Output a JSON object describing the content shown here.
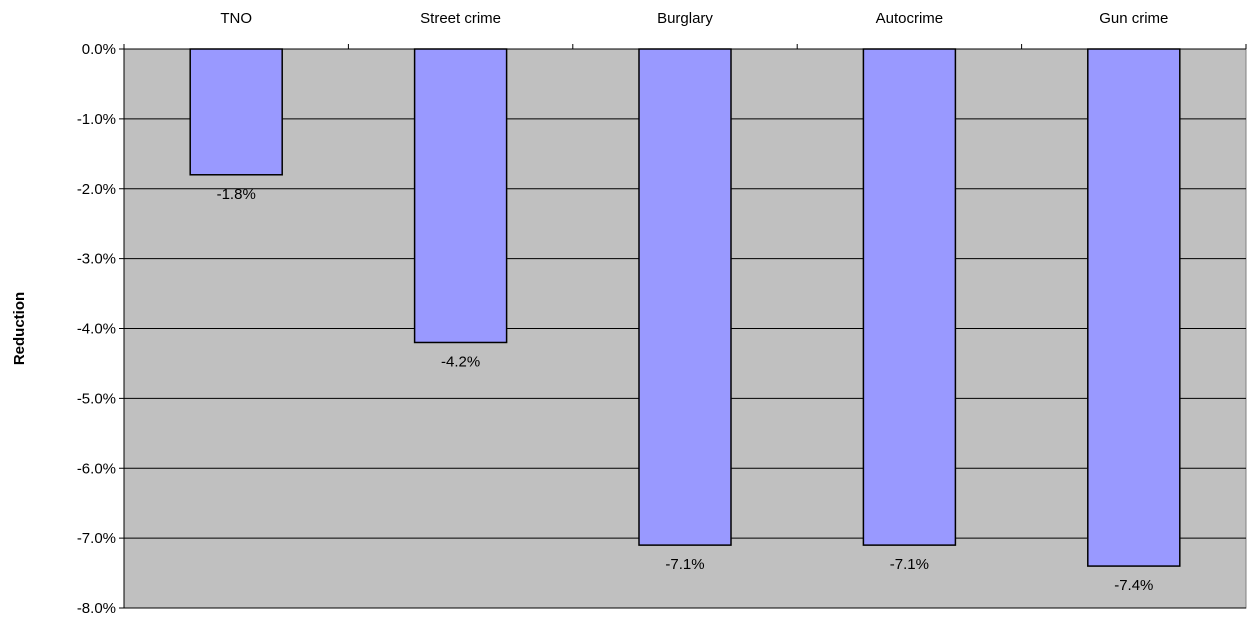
{
  "chart_data": {
    "type": "bar",
    "categories": [
      "TNO",
      "Street crime",
      "Burglary",
      "Autocrime",
      "Gun crime"
    ],
    "values": [
      -1.8,
      -4.2,
      -7.1,
      -7.1,
      -7.4
    ],
    "data_labels": [
      "-1.8%",
      "-4.2%",
      "-7.1%",
      "-7.1%",
      "-7.4%"
    ],
    "title": "",
    "xlabel": "",
    "ylabel": "Reduction",
    "ylim": [
      -8.0,
      0.0
    ],
    "yticks": [
      0.0,
      -1.0,
      -2.0,
      -3.0,
      -4.0,
      -5.0,
      -6.0,
      -7.0,
      -8.0
    ],
    "ytick_labels": [
      "0.0%",
      "-1.0%",
      "-2.0%",
      "-3.0%",
      "-4.0%",
      "-5.0%",
      "-6.0%",
      "-7.0%",
      "-8.0%"
    ],
    "category_axis_position": "top",
    "grid": true,
    "legend": "none",
    "colors": {
      "bar_fill": "#9999ff",
      "bar_stroke": "#000000",
      "plot_background": "#c0c0c0",
      "gridline": "#000000"
    }
  }
}
